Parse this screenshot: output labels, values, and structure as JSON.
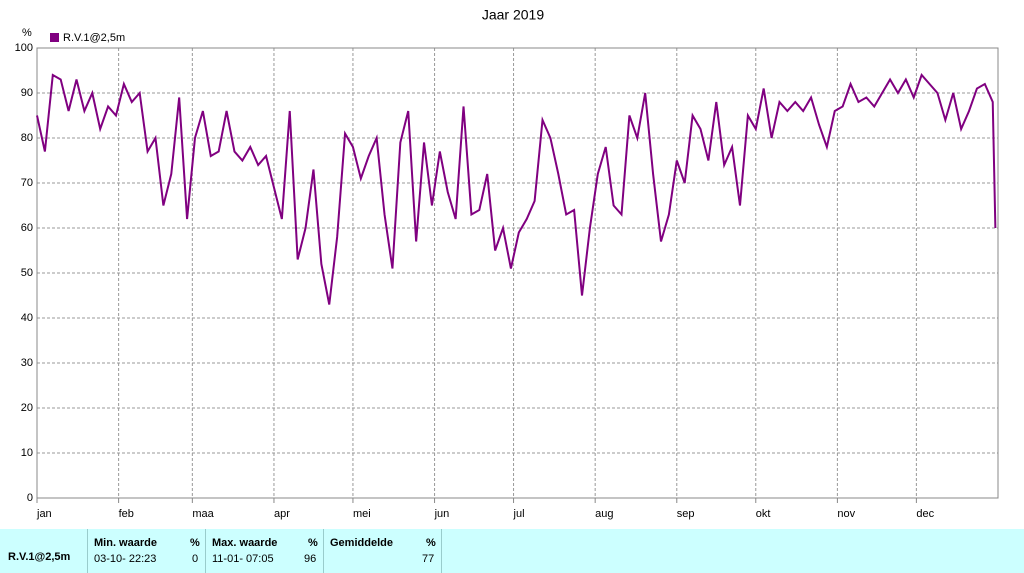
{
  "chart_data": {
    "type": "line",
    "title": "Jaar 2019",
    "y_unit": "%",
    "xlim": [
      0,
      365
    ],
    "xticks": [
      {
        "value": 0,
        "label": "jan"
      },
      {
        "value": 31,
        "label": "feb"
      },
      {
        "value": 59,
        "label": "maa"
      },
      {
        "value": 90,
        "label": "apr"
      },
      {
        "value": 120,
        "label": "mei"
      },
      {
        "value": 151,
        "label": "jun"
      },
      {
        "value": 181,
        "label": "jul"
      },
      {
        "value": 212,
        "label": "aug"
      },
      {
        "value": 243,
        "label": "sep"
      },
      {
        "value": 273,
        "label": "okt"
      },
      {
        "value": 304,
        "label": "nov"
      },
      {
        "value": 334,
        "label": "dec"
      }
    ],
    "ylim": [
      0,
      100
    ],
    "yticks": [
      0,
      10,
      20,
      30,
      40,
      50,
      60,
      70,
      80,
      90,
      100
    ],
    "grid": true,
    "x": [
      0,
      3,
      6,
      9,
      12,
      15,
      18,
      21,
      24,
      27,
      30,
      33,
      36,
      39,
      42,
      45,
      48,
      51,
      54,
      57,
      60,
      63,
      66,
      69,
      72,
      75,
      78,
      81,
      84,
      87,
      90,
      93,
      96,
      99,
      102,
      105,
      108,
      111,
      114,
      117,
      120,
      123,
      126,
      129,
      132,
      135,
      138,
      141,
      144,
      147,
      150,
      153,
      156,
      159,
      162,
      165,
      168,
      171,
      174,
      177,
      180,
      183,
      186,
      189,
      192,
      195,
      198,
      201,
      204,
      207,
      210,
      213,
      216,
      219,
      222,
      225,
      228,
      231,
      234,
      237,
      240,
      243,
      246,
      249,
      252,
      255,
      258,
      261,
      264,
      267,
      270,
      273,
      276,
      279,
      282,
      285,
      288,
      291,
      294,
      297,
      300,
      303,
      306,
      309,
      312,
      315,
      318,
      321,
      324,
      327,
      330,
      333,
      336,
      339,
      342,
      345,
      348,
      351,
      354,
      357,
      360,
      363,
      364
    ],
    "series": [
      {
        "name": "R.V.1@2,5m",
        "color": "#800080",
        "values": [
          85,
          77,
          94,
          93,
          86,
          93,
          86,
          90,
          82,
          87,
          85,
          92,
          88,
          90,
          77,
          80,
          65,
          72,
          89,
          62,
          80,
          86,
          76,
          77,
          86,
          77,
          75,
          78,
          74,
          76,
          69,
          62,
          86,
          53,
          60,
          73,
          52,
          43,
          58,
          81,
          78,
          71,
          76,
          80,
          63,
          51,
          79,
          86,
          57,
          79,
          65,
          77,
          68,
          62,
          87,
          63,
          64,
          72,
          55,
          60,
          51,
          59,
          62,
          66,
          84,
          80,
          72,
          63,
          64,
          45,
          60,
          72,
          78,
          65,
          63,
          85,
          80,
          90,
          72,
          57,
          63,
          75,
          70,
          85,
          82,
          75,
          88,
          74,
          78,
          65,
          85,
          82,
          91,
          80,
          88,
          86,
          88,
          86,
          89,
          83,
          78,
          86,
          87,
          92,
          88,
          89,
          87,
          90,
          93,
          90,
          93,
          89,
          94,
          92,
          90,
          84,
          90,
          82,
          86,
          91,
          92,
          88,
          60
        ]
      }
    ]
  },
  "stats": {
    "station": "R.V.1@2,5m",
    "min": {
      "label": "Min. waarde",
      "unit": "%",
      "time": "03-10- 22:23",
      "value": "0"
    },
    "max": {
      "label": "Max. waarde",
      "unit": "%",
      "time": "11-01- 07:05",
      "value": "96"
    },
    "avg": {
      "label": "Gemiddelde",
      "unit": "%",
      "value": "77"
    }
  }
}
